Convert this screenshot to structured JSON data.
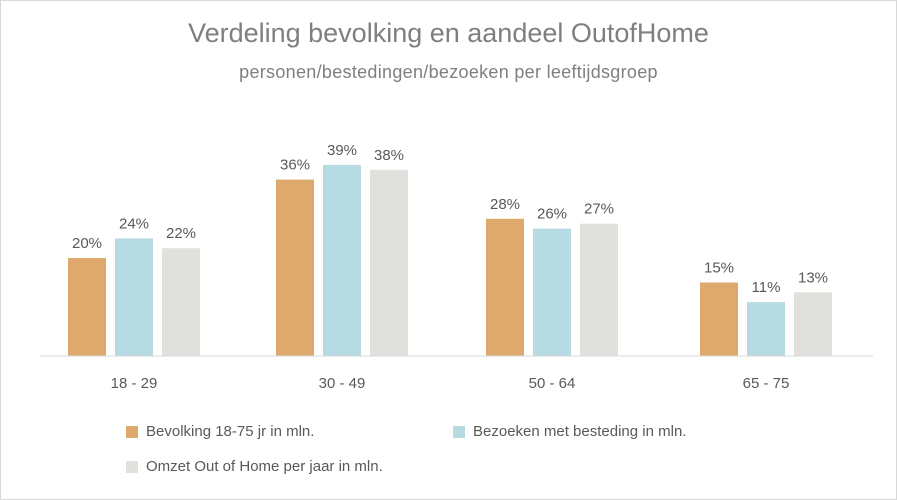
{
  "chart_data": {
    "type": "bar",
    "title": "Verdeling bevolking en aandeel OutofHome",
    "subtitle": "personen/bestedingen/bezoeken per leeftijdsgroep",
    "categories": [
      "18 - 29",
      "30 - 49",
      "50 - 64",
      "65 - 75"
    ],
    "series": [
      {
        "name": "Bevolking 18-75 jr in mln.",
        "values": [
          20,
          36,
          28,
          15
        ],
        "labels": [
          "20%",
          "36%",
          "28%",
          "15%"
        ],
        "color": "#dda96c"
      },
      {
        "name": "Bezoeken met besteding in mln.",
        "values": [
          24,
          39,
          26,
          11
        ],
        "labels": [
          "24%",
          "39%",
          "26%",
          "11%"
        ],
        "color": "#b7dbe3"
      },
      {
        "name": "Omzet Out of Home per jaar in mln.",
        "values": [
          22,
          38,
          27,
          13
        ],
        "labels": [
          "22%",
          "38%",
          "27%",
          "13%"
        ],
        "color": "#e0e0dc"
      }
    ],
    "ylim": [
      0,
      45
    ],
    "grid": false,
    "legend_position": "bottom"
  }
}
